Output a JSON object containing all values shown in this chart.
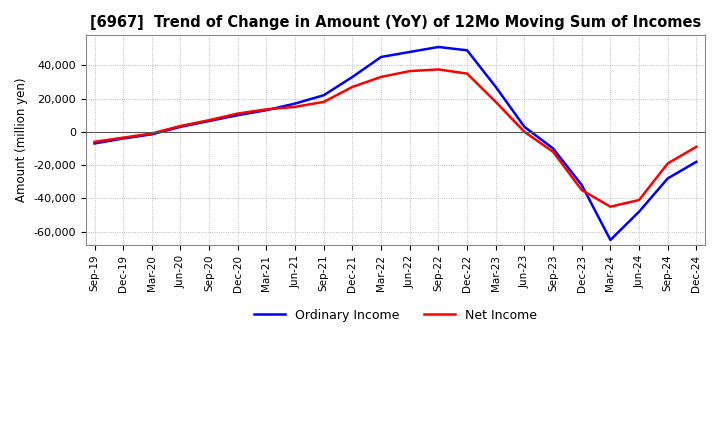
{
  "title": "[6967]  Trend of Change in Amount (YoY) of 12Mo Moving Sum of Incomes",
  "ylabel": "Amount (million yen)",
  "ylim": [
    -68000,
    58000
  ],
  "yticks": [
    -60000,
    -40000,
    -20000,
    0,
    20000,
    40000
  ],
  "background_color": "#ffffff",
  "grid_color": "#aaaaaa",
  "line_color_ordinary": "#0000ff",
  "line_color_net": "#ff0000",
  "legend_labels": [
    "Ordinary Income",
    "Net Income"
  ],
  "x_labels": [
    "Sep-19",
    "Dec-19",
    "Mar-20",
    "Jun-20",
    "Sep-20",
    "Dec-20",
    "Mar-21",
    "Jun-21",
    "Sep-21",
    "Dec-21",
    "Mar-22",
    "Jun-22",
    "Sep-22",
    "Dec-22",
    "Mar-23",
    "Jun-23",
    "Sep-23",
    "Dec-23",
    "Mar-24",
    "Jun-24",
    "Sep-24",
    "Dec-24"
  ],
  "ordinary_income": [
    -7000,
    -4000,
    -1500,
    3000,
    6500,
    10000,
    13000,
    17000,
    22000,
    33000,
    45000,
    48000,
    51000,
    49000,
    27000,
    3000,
    -10000,
    -32000,
    -65000,
    -48000,
    -28000,
    -18000
  ],
  "net_income": [
    -6000,
    -3500,
    -1000,
    3500,
    7000,
    11000,
    13500,
    15000,
    18000,
    27000,
    33000,
    36500,
    37500,
    35000,
    18000,
    0,
    -12000,
    -35000,
    -45000,
    -41000,
    -19000,
    -9000
  ]
}
